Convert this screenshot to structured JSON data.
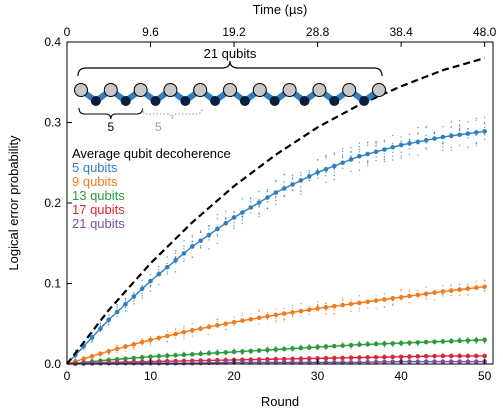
{
  "chart_data": {
    "type": "line",
    "xlabel": "Round",
    "ylabel": "Logical error probability",
    "top_xlabel": "Time (µs)",
    "xlim": [
      0,
      51
    ],
    "ylim": [
      0,
      0.4
    ],
    "x_ticks": [
      0,
      10,
      20,
      30,
      40,
      50
    ],
    "y_ticks": [
      0.0,
      0.1,
      0.2,
      0.3,
      0.4
    ],
    "y_tick_labels": [
      "0.0",
      "0.1",
      "0.2",
      "0.3",
      "0.4"
    ],
    "top_ticks": [
      0,
      9.6,
      19.2,
      28.8,
      38.4,
      48.0
    ],
    "top_tick_labels": [
      "0",
      "9.6",
      "19.2",
      "28.8",
      "38.4",
      "48.0"
    ],
    "decoherence": {
      "name": "Average qubit decoherence",
      "color": "#000000",
      "x": [
        0,
        5,
        10,
        15,
        20,
        25,
        30,
        35,
        40,
        45,
        50
      ],
      "y": [
        0.0,
        0.067,
        0.125,
        0.176,
        0.221,
        0.26,
        0.294,
        0.322,
        0.345,
        0.365,
        0.38
      ]
    },
    "series": [
      {
        "name": "5 qubits",
        "color": "#2f7fc1",
        "x": [
          0,
          5,
          10,
          15,
          20,
          25,
          30,
          35,
          40,
          45,
          50
        ],
        "y": [
          0.0,
          0.055,
          0.103,
          0.146,
          0.182,
          0.213,
          0.238,
          0.258,
          0.272,
          0.282,
          0.289
        ]
      },
      {
        "name": "9 qubits",
        "color": "#f07a1c",
        "x": [
          0,
          5,
          10,
          15,
          20,
          25,
          30,
          35,
          40,
          45,
          50
        ],
        "y": [
          0.0,
          0.016,
          0.03,
          0.042,
          0.052,
          0.061,
          0.069,
          0.076,
          0.083,
          0.09,
          0.096
        ]
      },
      {
        "name": "13 qubits",
        "color": "#2a9a3e",
        "x": [
          0,
          5,
          10,
          15,
          20,
          25,
          30,
          35,
          40,
          45,
          50
        ],
        "y": [
          0.0,
          0.005,
          0.009,
          0.012,
          0.015,
          0.018,
          0.021,
          0.024,
          0.026,
          0.028,
          0.03
        ]
      },
      {
        "name": "17 qubits",
        "color": "#d62a35",
        "x": [
          0,
          5,
          10,
          15,
          20,
          25,
          30,
          35,
          40,
          45,
          50
        ],
        "y": [
          0.0,
          0.002,
          0.003,
          0.004,
          0.005,
          0.006,
          0.007,
          0.008,
          0.009,
          0.01,
          0.01
        ]
      },
      {
        "name": "21 qubits",
        "color": "#7a4fa0",
        "x": [
          0,
          5,
          10,
          15,
          20,
          25,
          30,
          35,
          40,
          45,
          50
        ],
        "y": [
          0.0,
          0.001,
          0.001,
          0.001,
          0.002,
          0.002,
          0.002,
          0.002,
          0.003,
          0.003,
          0.003
        ]
      }
    ],
    "inset": {
      "brace_label": "21 qubits",
      "sub_label_1": "5",
      "sub_label_2": "5"
    }
  }
}
